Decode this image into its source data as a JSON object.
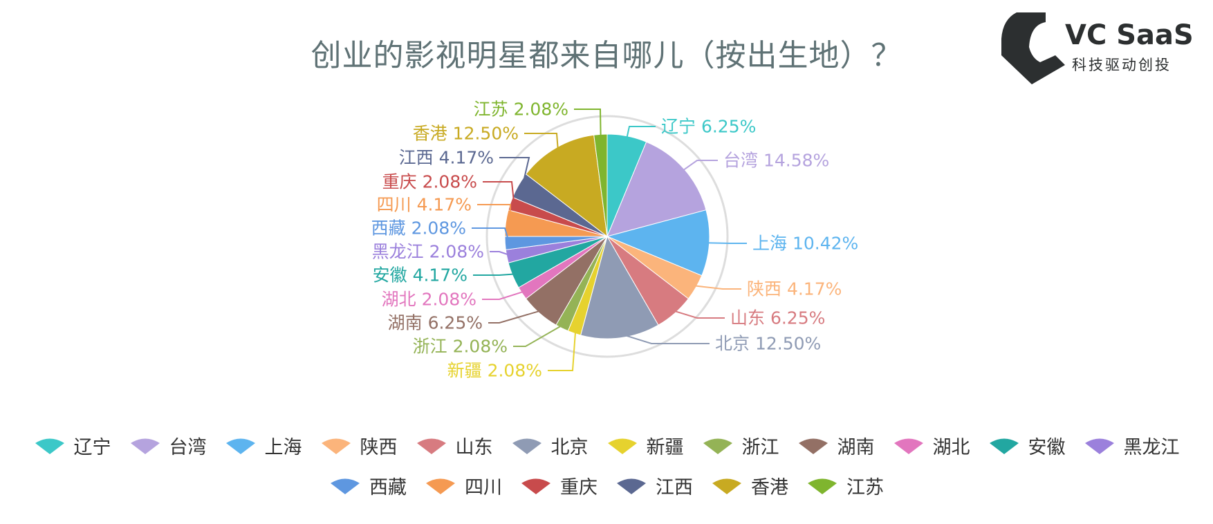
{
  "chart_data": {
    "type": "pie",
    "title": "创业的影视明星都来自哪儿（按出生地）？",
    "slices": [
      {
        "name": "辽宁",
        "value": 6.25,
        "label": "6.25%",
        "color": "#3cc8c8"
      },
      {
        "name": "台湾",
        "value": 14.58,
        "label": "14.58%",
        "color": "#b5a3de"
      },
      {
        "name": "上海",
        "value": 10.42,
        "label": "10.42%",
        "color": "#5db4ef"
      },
      {
        "name": "陕西",
        "value": 4.17,
        "label": "4.17%",
        "color": "#fbb47b"
      },
      {
        "name": "山东",
        "value": 6.25,
        "label": "6.25%",
        "color": "#d77b80"
      },
      {
        "name": "北京",
        "value": 12.5,
        "label": "12.50%",
        "color": "#8f9bb4"
      },
      {
        "name": "新疆",
        "value": 2.08,
        "label": "2.08%",
        "color": "#e6d22e"
      },
      {
        "name": "浙江",
        "value": 2.08,
        "label": "2.08%",
        "color": "#94b356"
      },
      {
        "name": "湖南",
        "value": 6.25,
        "label": "6.25%",
        "color": "#937065"
      },
      {
        "name": "湖北",
        "value": 2.08,
        "label": "2.08%",
        "color": "#e276be"
      },
      {
        "name": "安徽",
        "value": 4.17,
        "label": "4.17%",
        "color": "#22a7a1"
      },
      {
        "name": "黑龙江",
        "value": 2.08,
        "label": "2.08%",
        "color": "#9b80dc"
      },
      {
        "name": "西藏",
        "value": 2.08,
        "label": "2.08%",
        "color": "#5e97e0"
      },
      {
        "name": "四川",
        "value": 4.17,
        "label": "4.17%",
        "color": "#f59a52"
      },
      {
        "name": "重庆",
        "value": 2.08,
        "label": "2.08%",
        "color": "#c84b4c"
      },
      {
        "name": "江西",
        "value": 4.17,
        "label": "4.17%",
        "color": "#5b6891"
      },
      {
        "name": "香港",
        "value": 12.5,
        "label": "12.50%",
        "color": "#c8aa22"
      },
      {
        "name": "江苏",
        "value": 2.08,
        "label": "2.08%",
        "color": "#7fb52e"
      }
    ],
    "legend_position": "bottom"
  },
  "logo": {
    "title": "VC SaaS",
    "tagline": "科技驱动创投",
    "color": "#2c2f30"
  }
}
